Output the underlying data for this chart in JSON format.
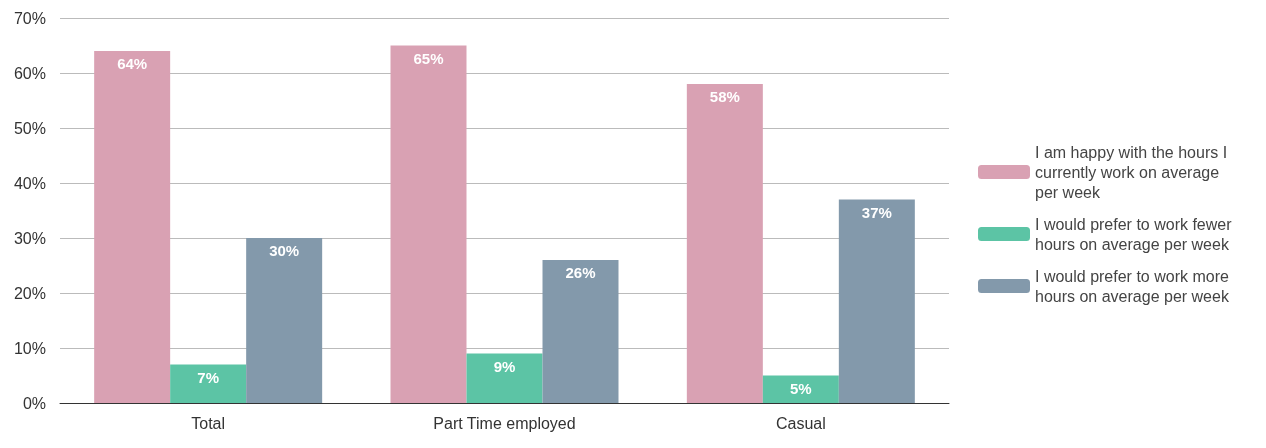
{
  "chart_data": {
    "type": "bar",
    "categories": [
      "Total",
      "Part Time employed",
      "Casual"
    ],
    "series": [
      {
        "name": "I am happy with the hours I currently work on average per week",
        "color": "#d9a1b3",
        "values": [
          64,
          65,
          58
        ],
        "value_labels": [
          "64%",
          "65%",
          "58%"
        ]
      },
      {
        "name": "I would prefer to work fewer hours on average per week",
        "color": "#5cc4a5",
        "values": [
          7,
          9,
          5
        ],
        "value_labels": [
          "7%",
          "9%",
          "5%"
        ]
      },
      {
        "name": "I would prefer to work more hours on average per week",
        "color": "#8399ab",
        "values": [
          30,
          26,
          37
        ],
        "value_labels": [
          "30%",
          "26%",
          "37%"
        ]
      }
    ],
    "ylim": [
      0,
      70
    ],
    "yticks": [
      {
        "value": 0,
        "label": "0%"
      },
      {
        "value": 10,
        "label": "10%"
      },
      {
        "value": 20,
        "label": "20%"
      },
      {
        "value": 30,
        "label": "30%"
      },
      {
        "value": 40,
        "label": "40%"
      },
      {
        "value": 50,
        "label": "50%"
      },
      {
        "value": 60,
        "label": "60%"
      },
      {
        "value": 70,
        "label": "70%"
      }
    ],
    "grid": "y",
    "legend": "right"
  }
}
